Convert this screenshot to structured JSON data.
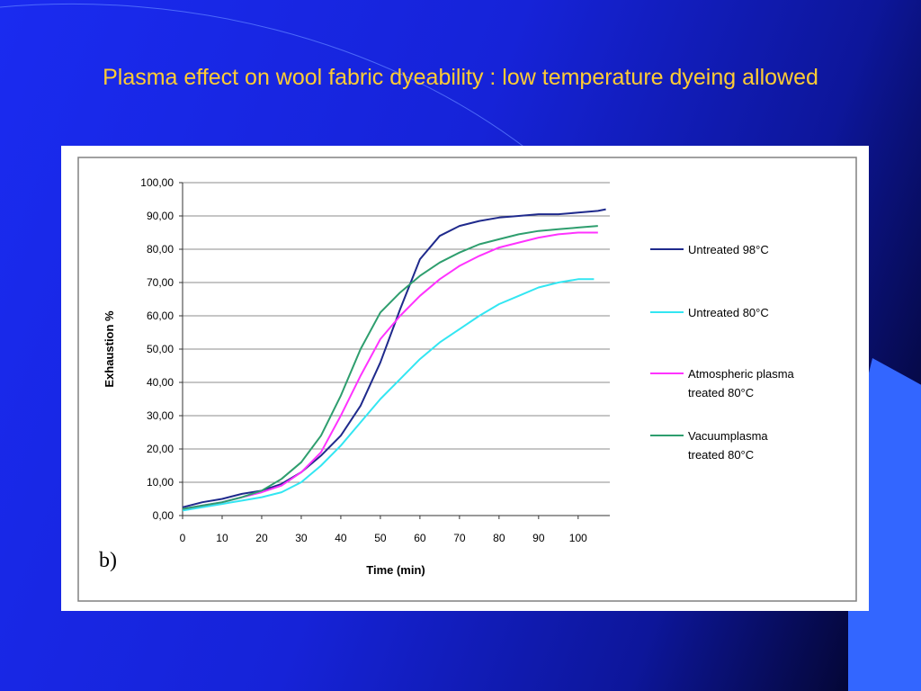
{
  "slide": {
    "title": "Plasma effect on wool fabric dyeability : low temperature dyeing allowed"
  },
  "figure": {
    "panel_label": "b)"
  },
  "chart_data": {
    "type": "line",
    "xlabel": "Time (min)",
    "ylabel": "Exhaustion %",
    "xlim": [
      0,
      108
    ],
    "ylim": [
      0,
      100
    ],
    "x_ticks": [
      "0",
      "10",
      "20",
      "30",
      "40",
      "50",
      "60",
      "70",
      "80",
      "90",
      "100"
    ],
    "y_ticks": [
      "0,00",
      "10,00",
      "20,00",
      "30,00",
      "40,00",
      "50,00",
      "60,00",
      "70,00",
      "80,00",
      "90,00",
      "100,00"
    ],
    "grid": "horizontal",
    "legend_position": "right",
    "series": [
      {
        "name": "Untreated 98°C",
        "color": "#1f2a8c",
        "x": [
          0,
          5,
          10,
          15,
          20,
          25,
          30,
          35,
          40,
          45,
          50,
          55,
          60,
          65,
          70,
          75,
          80,
          85,
          90,
          95,
          100,
          105,
          107
        ],
        "y": [
          2.5,
          4,
          5,
          6.5,
          7.5,
          9.5,
          13,
          18,
          24,
          33,
          46,
          62,
          77,
          84,
          87,
          88.5,
          89.5,
          90,
          90.5,
          90.5,
          91,
          91.5,
          92
        ]
      },
      {
        "name": "Untreated 80°C",
        "color": "#33e6f2",
        "x": [
          0,
          5,
          10,
          15,
          20,
          25,
          30,
          35,
          40,
          45,
          50,
          55,
          60,
          65,
          70,
          75,
          80,
          85,
          90,
          95,
          100,
          104
        ],
        "y": [
          1.5,
          2.5,
          3.5,
          4.5,
          5.5,
          7,
          10,
          15,
          21,
          28,
          35,
          41,
          47,
          52,
          56,
          60,
          63.5,
          66,
          68.5,
          70,
          71,
          71
        ]
      },
      {
        "name": "Atmospheric plasma treated 80°C",
        "color": "#ff33ff",
        "x": [
          0,
          5,
          10,
          15,
          20,
          25,
          30,
          35,
          40,
          45,
          50,
          55,
          60,
          65,
          70,
          75,
          80,
          85,
          90,
          95,
          100,
          105
        ],
        "y": [
          2,
          3,
          4,
          5.5,
          7,
          9,
          13,
          19,
          30,
          42,
          53,
          60,
          66,
          71,
          75,
          78,
          80.5,
          82,
          83.5,
          84.5,
          85,
          85
        ]
      },
      {
        "name": "Vacuumplasma treated 80°C",
        "color": "#2e9e6e",
        "x": [
          0,
          5,
          10,
          15,
          20,
          25,
          30,
          35,
          40,
          45,
          50,
          55,
          60,
          65,
          70,
          75,
          80,
          85,
          90,
          95,
          100,
          105
        ],
        "y": [
          2,
          3,
          4,
          5.5,
          7.5,
          11,
          16,
          24,
          36,
          50,
          61,
          67,
          72,
          76,
          79,
          81.5,
          83,
          84.5,
          85.5,
          86,
          86.5,
          87
        ]
      }
    ]
  }
}
